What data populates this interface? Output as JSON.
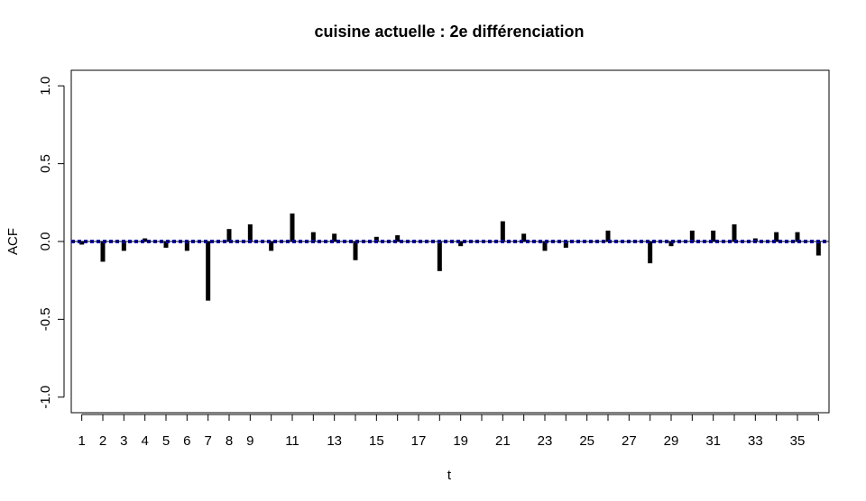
{
  "chart_data": {
    "type": "bar",
    "title": "cuisine actuelle : 2e différenciation",
    "xlabel": "t",
    "ylabel": "ACF",
    "xlim": [
      0.5,
      36.5
    ],
    "ylim": [
      -1.1,
      1.1
    ],
    "x_tick_labels": [
      "1",
      "2",
      "3",
      "4",
      "5",
      "6",
      "7",
      "8",
      "9",
      "11",
      "13",
      "15",
      "17",
      "19",
      "21",
      "23",
      "25",
      "27",
      "29",
      "31",
      "33",
      "35"
    ],
    "x_tick_positions": [
      1,
      2,
      3,
      4,
      5,
      6,
      7,
      8,
      9,
      11,
      13,
      15,
      17,
      19,
      21,
      23,
      25,
      27,
      29,
      31,
      33,
      35
    ],
    "y_ticks": [
      -1.0,
      -0.5,
      0.0,
      0.5,
      1.0
    ],
    "y_tick_labels": [
      "-1.0",
      "-0.5",
      "0.0",
      "0.5",
      "1.0"
    ],
    "confidence_band": [
      -0.007,
      0.007
    ],
    "band_color": "#0000cc",
    "bar_color": "#000000",
    "x": [
      1,
      2,
      3,
      4,
      5,
      6,
      7,
      8,
      9,
      10,
      11,
      12,
      13,
      14,
      15,
      16,
      17,
      18,
      19,
      20,
      21,
      22,
      23,
      24,
      25,
      26,
      27,
      28,
      29,
      30,
      31,
      32,
      33,
      34,
      35,
      36
    ],
    "values": [
      -0.02,
      -0.13,
      -0.06,
      0.02,
      -0.04,
      -0.06,
      -0.38,
      0.08,
      0.11,
      -0.06,
      0.18,
      0.06,
      0.05,
      -0.12,
      0.03,
      0.04,
      0.0,
      -0.19,
      -0.03,
      0.0,
      0.13,
      0.05,
      -0.06,
      -0.04,
      0.0,
      0.07,
      0.0,
      -0.14,
      -0.03,
      0.07,
      0.07,
      0.11,
      0.02,
      0.06,
      0.06,
      -0.09
    ]
  }
}
